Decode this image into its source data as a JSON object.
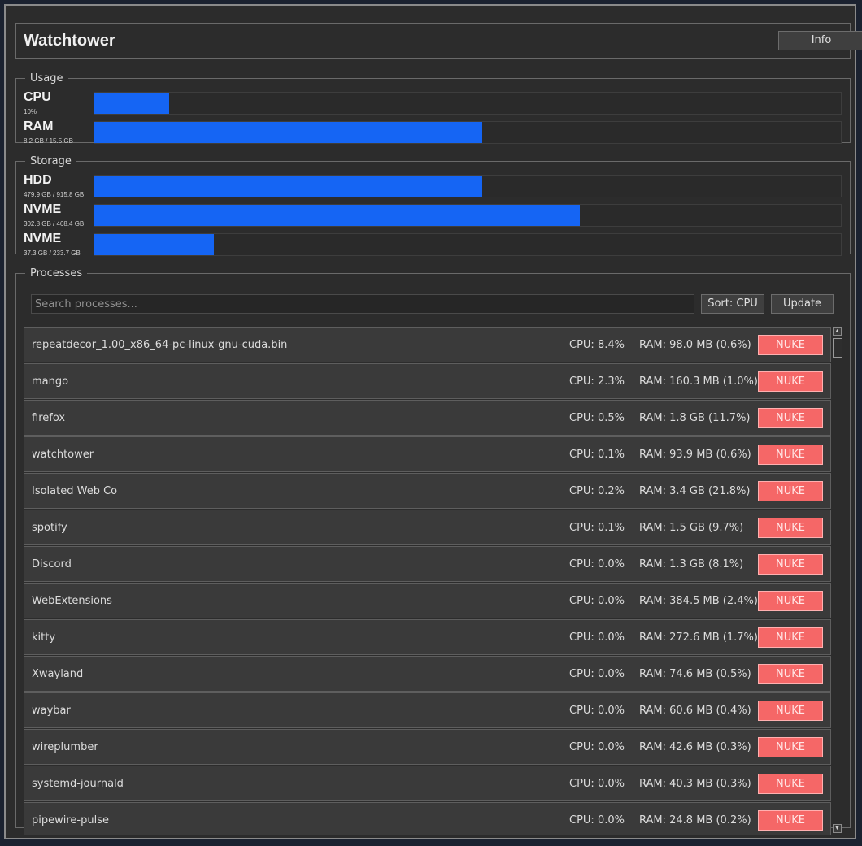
{
  "app": {
    "title": "Watchtower",
    "info_label": "Info"
  },
  "usage": {
    "legend": "Usage",
    "meters": [
      {
        "name": "CPU",
        "detail": "10%",
        "fraction": 0.1
      },
      {
        "name": "RAM",
        "detail": "8.2 GB / 15.5 GB",
        "fraction": 0.52
      }
    ]
  },
  "storage": {
    "legend": "Storage",
    "meters": [
      {
        "name": "HDD",
        "detail": "479.9 GB / 915.8 GB",
        "fraction": 0.52
      },
      {
        "name": "NVME",
        "detail": "302.8 GB / 468.4 GB",
        "fraction": 0.65
      },
      {
        "name": "NVME",
        "detail": "37.3 GB / 233.7 GB",
        "fraction": 0.16
      }
    ]
  },
  "processes": {
    "legend": "Processes",
    "search_placeholder": "Search processes...",
    "sort_label": "Sort: CPU",
    "update_label": "Update",
    "nuke_label": "NUKE",
    "rows": [
      {
        "name": "repeatdecor_1.00_x86_64-pc-linux-gnu-cuda.bin",
        "cpu": "CPU: 8.4%",
        "ram": "RAM: 98.0 MB (0.6%)"
      },
      {
        "name": "mango",
        "cpu": "CPU: 2.3%",
        "ram": "RAM: 160.3 MB (1.0%)"
      },
      {
        "name": "firefox",
        "cpu": "CPU: 0.5%",
        "ram": "RAM: 1.8 GB (11.7%)"
      },
      {
        "name": "watchtower",
        "cpu": "CPU: 0.1%",
        "ram": "RAM: 93.9 MB (0.6%)"
      },
      {
        "name": "Isolated Web Co",
        "cpu": "CPU: 0.2%",
        "ram": "RAM: 3.4 GB (21.8%)"
      },
      {
        "name": "spotify",
        "cpu": "CPU: 0.1%",
        "ram": "RAM: 1.5 GB (9.7%)"
      },
      {
        "name": "Discord",
        "cpu": "CPU: 0.0%",
        "ram": "RAM: 1.3 GB (8.1%)"
      },
      {
        "name": "WebExtensions",
        "cpu": "CPU: 0.0%",
        "ram": "RAM: 384.5 MB (2.4%)"
      },
      {
        "name": "kitty",
        "cpu": "CPU: 0.0%",
        "ram": "RAM: 272.6 MB (1.7%)"
      },
      {
        "name": "Xwayland",
        "cpu": "CPU: 0.0%",
        "ram": "RAM: 74.6 MB (0.5%)"
      },
      {
        "name": "waybar",
        "cpu": "CPU: 0.0%",
        "ram": "RAM: 60.6 MB (0.4%)"
      },
      {
        "name": "wireplumber",
        "cpu": "CPU: 0.0%",
        "ram": "RAM: 42.6 MB (0.3%)"
      },
      {
        "name": "systemd-journald",
        "cpu": "CPU: 0.0%",
        "ram": "RAM: 40.3 MB (0.3%)"
      },
      {
        "name": "pipewire-pulse",
        "cpu": "CPU: 0.0%",
        "ram": "RAM: 24.8 MB (0.2%)"
      }
    ]
  },
  "icons": {
    "scroll_up": "scroll-up-arrow-icon",
    "scroll_down": "scroll-down-arrow-icon"
  },
  "colors": {
    "bar_fill": "#1565f4",
    "nuke": "#f56767",
    "window_bg": "#2c2c2c"
  }
}
